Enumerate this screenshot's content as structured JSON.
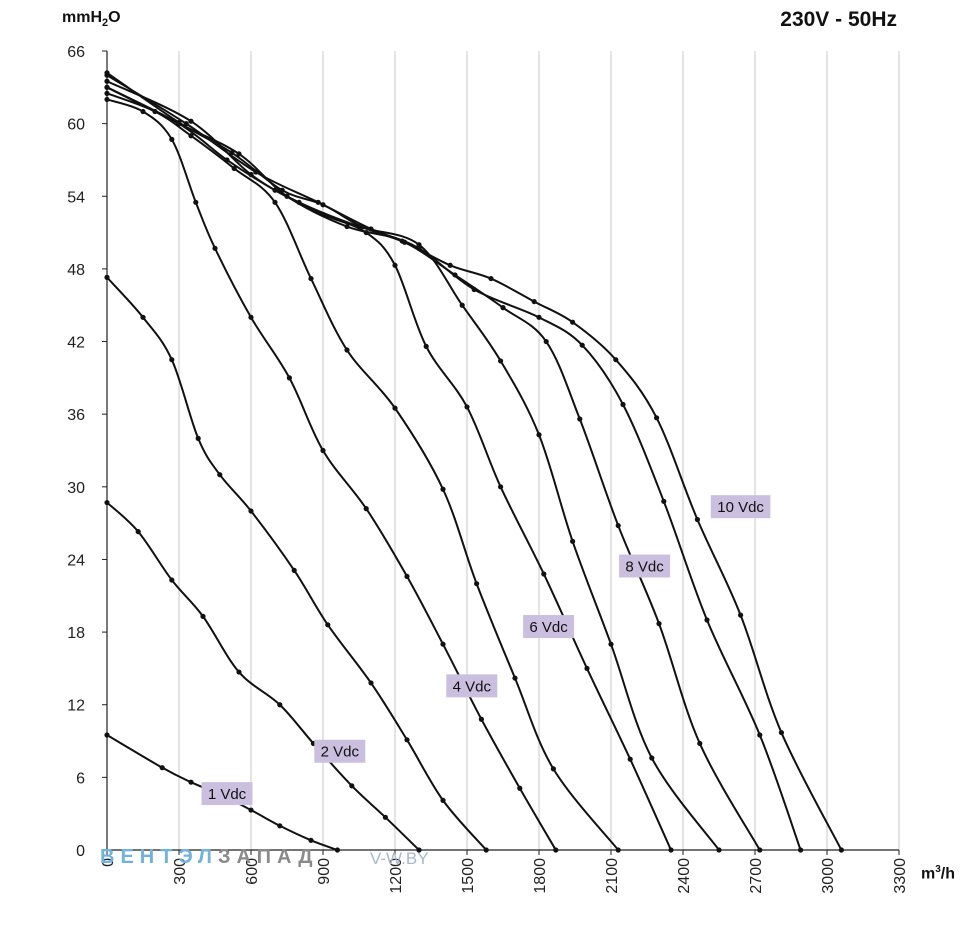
{
  "header": {
    "supply": "230V - 50Hz",
    "y_unit_main": "mmH",
    "y_unit_sub": "2",
    "y_unit_tail": "O",
    "x_unit_main": "m",
    "x_unit_sup": "3",
    "x_unit_tail": "/h"
  },
  "watermark": {
    "part1": "ВЕНТЭЛ",
    "part2": "ЗАПАД",
    "part3": "V-W.BY"
  },
  "colors": {
    "curve": "#111111",
    "grid": "#c8c8c8",
    "label_bg": "#cbbfe0"
  },
  "chart_data": {
    "type": "line",
    "title": "230V - 50Hz",
    "xlabel": "m³/h",
    "ylabel": "mmH₂O",
    "xlim": [
      0,
      3300
    ],
    "ylim": [
      0,
      66
    ],
    "x_ticks": [
      "0",
      "300",
      "600",
      "900",
      "1200",
      "1500",
      "1800",
      "2100",
      "2400",
      "2700",
      "3000",
      "3300"
    ],
    "y_ticks": [
      "0",
      "6",
      "12",
      "18",
      "24",
      "30",
      "36",
      "42",
      "48",
      "54",
      "60",
      "66"
    ],
    "grid": "vertical",
    "series": [
      {
        "name": "1 Vdc",
        "label_at": [
          500,
          4.7
        ],
        "points": [
          [
            0,
            9.5
          ],
          [
            230,
            6.8
          ],
          [
            350,
            5.6
          ],
          [
            480,
            4.5
          ],
          [
            600,
            3.3
          ],
          [
            720,
            2.0
          ],
          [
            850,
            0.8
          ],
          [
            960,
            0
          ]
        ]
      },
      {
        "name": "",
        "label_at": null,
        "points": [
          [
            0,
            28.7
          ],
          [
            130,
            26.3
          ],
          [
            270,
            22.3
          ],
          [
            400,
            19.3
          ],
          [
            550,
            14.7
          ],
          [
            720,
            12.0
          ],
          [
            860,
            8.8
          ],
          [
            1020,
            5.3
          ],
          [
            1160,
            2.7
          ],
          [
            1300,
            0
          ]
        ]
      },
      {
        "name": "2 Vdc",
        "label_at": [
          970,
          8.2
        ],
        "points": [
          [
            0,
            47.3
          ],
          [
            150,
            44.0
          ],
          [
            270,
            40.5
          ],
          [
            380,
            34.0
          ],
          [
            470,
            31.0
          ],
          [
            600,
            28.0
          ],
          [
            780,
            23.1
          ],
          [
            920,
            18.6
          ],
          [
            1100,
            13.8
          ],
          [
            1250,
            9.1
          ],
          [
            1400,
            4.1
          ],
          [
            1580,
            0
          ]
        ]
      },
      {
        "name": "4 Vdc",
        "label_at": [
          1520,
          13.6
        ],
        "points": [
          [
            0,
            62.0
          ],
          [
            150,
            61.0
          ],
          [
            270,
            58.7
          ],
          [
            370,
            53.5
          ],
          [
            450,
            49.7
          ],
          [
            600,
            44.0
          ],
          [
            760,
            39.0
          ],
          [
            900,
            33.0
          ],
          [
            1080,
            28.2
          ],
          [
            1250,
            22.6
          ],
          [
            1400,
            17.0
          ],
          [
            1560,
            10.8
          ],
          [
            1720,
            5.1
          ],
          [
            1870,
            0
          ]
        ]
      },
      {
        "name": "",
        "label_at": null,
        "points": [
          [
            0,
            62.5
          ],
          [
            200,
            61.0
          ],
          [
            350,
            59.0
          ],
          [
            530,
            56.3
          ],
          [
            700,
            53.5
          ],
          [
            850,
            47.2
          ],
          [
            1000,
            41.3
          ],
          [
            1200,
            36.5
          ],
          [
            1400,
            29.8
          ],
          [
            1540,
            22.0
          ],
          [
            1700,
            14.2
          ],
          [
            1860,
            6.7
          ],
          [
            2130,
            0
          ]
        ]
      },
      {
        "name": "6 Vdc",
        "label_at": [
          1840,
          18.5
        ],
        "points": [
          [
            0,
            63.0
          ],
          [
            300,
            60.0
          ],
          [
            500,
            57.0
          ],
          [
            700,
            54.5
          ],
          [
            900,
            52.5
          ],
          [
            1080,
            51.0
          ],
          [
            1200,
            48.3
          ],
          [
            1330,
            41.6
          ],
          [
            1500,
            36.6
          ],
          [
            1640,
            30.0
          ],
          [
            1820,
            22.8
          ],
          [
            2000,
            15.0
          ],
          [
            2180,
            7.5
          ],
          [
            2350,
            0
          ]
        ]
      },
      {
        "name": "8 Vdc",
        "label_at": [
          2240,
          23.5
        ],
        "points": [
          [
            0,
            63.5
          ],
          [
            350,
            60.2
          ],
          [
            600,
            55.8
          ],
          [
            800,
            53.5
          ],
          [
            1050,
            51.5
          ],
          [
            1300,
            50.0
          ],
          [
            1480,
            45.0
          ],
          [
            1640,
            40.4
          ],
          [
            1800,
            34.3
          ],
          [
            1940,
            25.5
          ],
          [
            2100,
            17.0
          ],
          [
            2270,
            7.6
          ],
          [
            2550,
            0
          ]
        ]
      },
      {
        "name": "10 Vdc",
        "label_at": [
          2640,
          28.4
        ],
        "points": [
          [
            0,
            63.0
          ],
          [
            300,
            60.0
          ],
          [
            550,
            57.5
          ],
          [
            750,
            54.0
          ],
          [
            1000,
            51.5
          ],
          [
            1230,
            50.3
          ],
          [
            1450,
            47.5
          ],
          [
            1650,
            44.8
          ],
          [
            1830,
            42.0
          ],
          [
            1970,
            35.6
          ],
          [
            2130,
            26.8
          ],
          [
            2300,
            18.7
          ],
          [
            2470,
            8.8
          ],
          [
            2720,
            0
          ]
        ]
      },
      {
        "name": "",
        "label_at": null,
        "points": [
          [
            0,
            64.0
          ],
          [
            330,
            60.0
          ],
          [
            620,
            56.0
          ],
          [
            880,
            53.5
          ],
          [
            1100,
            51.3
          ],
          [
            1300,
            49.7
          ],
          [
            1530,
            46.3
          ],
          [
            1800,
            44.0
          ],
          [
            1980,
            41.7
          ],
          [
            2150,
            36.8
          ],
          [
            2320,
            28.8
          ],
          [
            2500,
            19.0
          ],
          [
            2720,
            9.5
          ],
          [
            2890,
            0
          ]
        ]
      },
      {
        "name": "",
        "label_at": null,
        "points": [
          [
            0,
            64.2
          ],
          [
            300,
            60.1
          ],
          [
            520,
            57.6
          ],
          [
            730,
            54.5
          ],
          [
            900,
            53.3
          ],
          [
            1060,
            51.5
          ],
          [
            1240,
            50.2
          ],
          [
            1430,
            48.3
          ],
          [
            1600,
            47.2
          ],
          [
            1780,
            45.3
          ],
          [
            1940,
            43.6
          ],
          [
            2120,
            40.5
          ],
          [
            2290,
            35.7
          ],
          [
            2460,
            27.3
          ],
          [
            2640,
            19.4
          ],
          [
            2810,
            9.7
          ],
          [
            3060,
            0
          ]
        ]
      }
    ]
  }
}
